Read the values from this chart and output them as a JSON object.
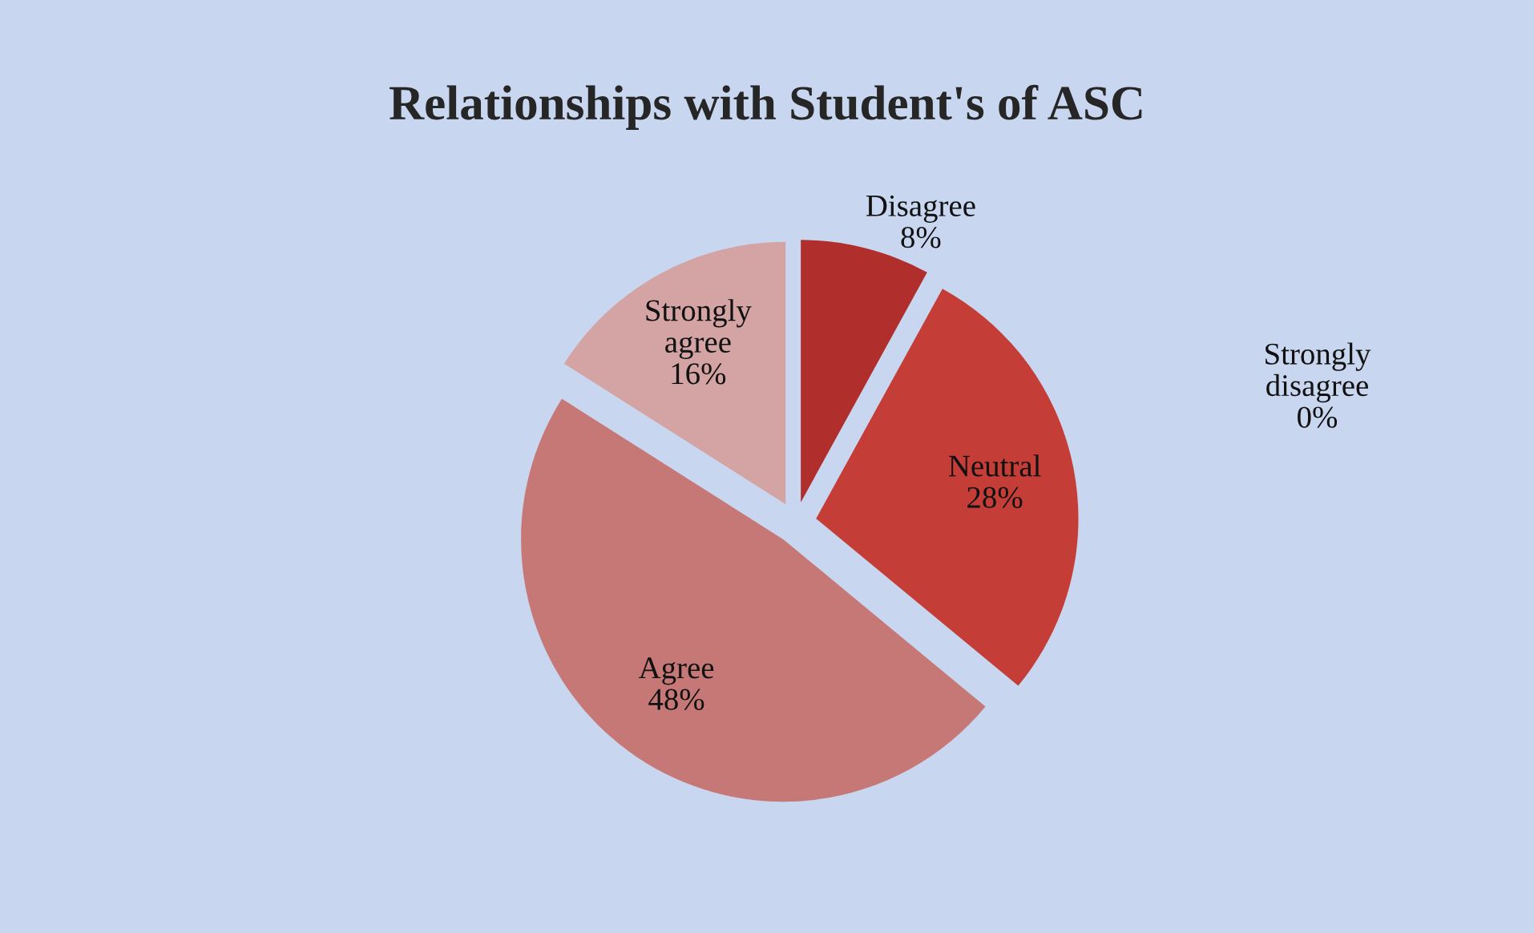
{
  "chart_data": {
    "type": "pie",
    "title": "Relationships with Student's of ASC",
    "categories": [
      "Strongly disagree",
      "Disagree",
      "Neutral",
      "Agree",
      "Strongly agree"
    ],
    "values": [
      0,
      8,
      28,
      48,
      16
    ],
    "colors": [
      "#8e2422",
      "#b02f2c",
      "#c53d37",
      "#c67876",
      "#d4a4a4"
    ],
    "value_labels": [
      "0%",
      "8%",
      "28%",
      "48%",
      "16%"
    ]
  }
}
